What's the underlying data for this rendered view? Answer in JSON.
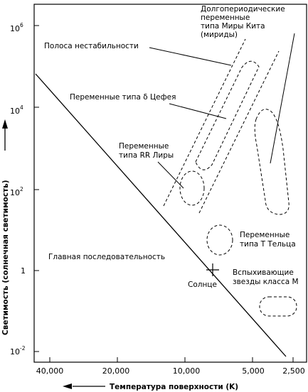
{
  "axes": {
    "y_title": "Светимость (солнечная светимость)",
    "x_title": "Температура поверхности (K)",
    "y_ticks": [
      {
        "base": "10",
        "exp": "6"
      },
      {
        "base": "10",
        "exp": "4"
      },
      {
        "base": "10",
        "exp": "2"
      },
      {
        "base": "1",
        "exp": ""
      },
      {
        "base": "10",
        "exp": "-2"
      }
    ],
    "x_ticks": [
      "40,000",
      "20,000",
      "10,000",
      "5,000",
      "2,500"
    ]
  },
  "labels": {
    "mira": [
      "Долгопериодические",
      "переменные",
      "типа Миры Кита",
      "(мириды)"
    ],
    "instability": "Полоса нестабильности",
    "cepheid": "Переменные типа δ Цефея",
    "rr_lyrae": [
      "Переменные",
      "типа RR Лиры"
    ],
    "t_tauri": [
      "Переменные",
      "типа T Тельца"
    ],
    "main_sequence": "Главная последовательность",
    "flare": [
      "Вспыхивающие",
      "звезды класса M"
    ],
    "sun": "Солнце"
  }
}
